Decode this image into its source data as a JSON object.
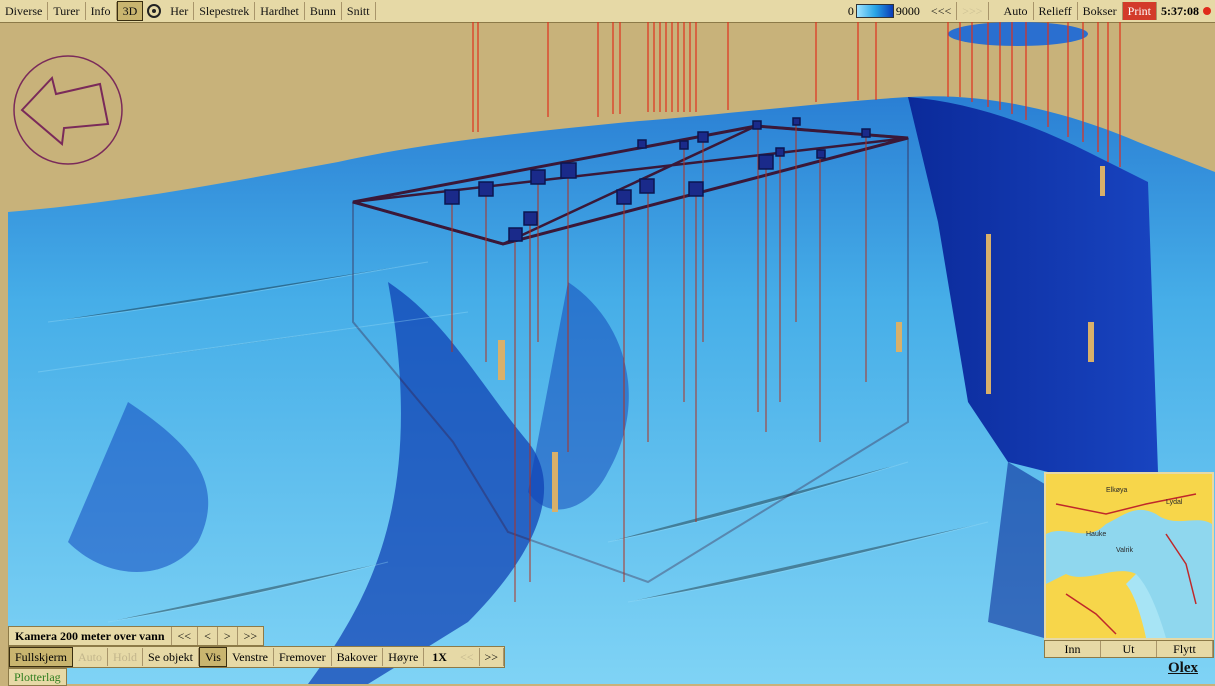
{
  "toolbar": {
    "items": [
      "Diverse",
      "Turer",
      "Info",
      "3D",
      "Her",
      "Slepestrek",
      "Hardhet",
      "Bunn",
      "Snitt"
    ],
    "depth_min": "0",
    "depth_max": "9000",
    "back": "<<<",
    "forward": ">>>",
    "auto": "Auto",
    "relieff": "Relieff",
    "bokser": "Bokser",
    "print": "Print",
    "clock": "5:37:08"
  },
  "camera": {
    "label": "Kamera 200 meter over vann",
    "buttons": [
      "<<",
      "<",
      ">",
      ">>"
    ]
  },
  "bottom": {
    "fullskjerm": "Fullskjerm",
    "auto": "Auto",
    "hold": "Hold",
    "se_objekt": "Se objekt",
    "vis": "Vis",
    "venstre": "Venstre",
    "fremover": "Fremover",
    "bakover": "Bakover",
    "hoyre": "Høyre",
    "speed": "1X",
    "slower": "<<",
    "faster": ">>"
  },
  "plotterlag": "Plotterlag",
  "minimap": {
    "buttons": [
      "Inn",
      "Ut",
      "Flytt"
    ]
  },
  "brand": "Olex",
  "colors": {
    "sky": "#c8b27a",
    "seabed_light": "#6cc8f2",
    "seabed_mid": "#2a8fd8",
    "seabed_dark": "#0a2fa8",
    "marker_red": "#e0301c",
    "panel": "#e6d9a6"
  }
}
